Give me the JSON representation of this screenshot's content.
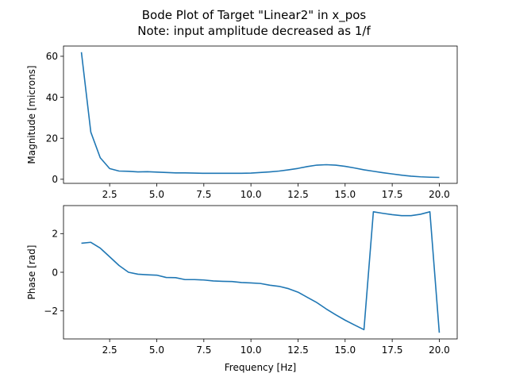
{
  "chart_data": {
    "title": "Bode Plot of Target \"Linear2\" in x_pos",
    "subtitle": "Note: input amplitude decreased as 1/f",
    "colors": {
      "series": "#1f77b4"
    },
    "panels": [
      {
        "id": "magnitude",
        "type": "line",
        "xlabel": "",
        "ylabel": "Magnitude [microns]",
        "xlim": [
          0.05,
          20.95
        ],
        "ylim": [
          -2,
          65
        ],
        "xticks": [
          2.5,
          5.0,
          7.5,
          10.0,
          12.5,
          15.0,
          17.5,
          20.0
        ],
        "xtick_labels": [
          "2.5",
          "5.0",
          "7.5",
          "10.0",
          "12.5",
          "15.0",
          "17.5",
          "20.0"
        ],
        "yticks": [
          0,
          20,
          40,
          60
        ],
        "ytick_labels": [
          "0",
          "20",
          "40",
          "60"
        ],
        "grid": false,
        "x": [
          1.0,
          1.5,
          2.0,
          2.5,
          3.0,
          3.5,
          4.0,
          4.5,
          5.0,
          5.5,
          6.0,
          6.5,
          7.0,
          7.5,
          8.0,
          8.5,
          9.0,
          9.5,
          10.0,
          10.5,
          11.0,
          11.5,
          12.0,
          12.5,
          13.0,
          13.5,
          14.0,
          14.5,
          15.0,
          15.5,
          16.0,
          16.5,
          17.0,
          17.5,
          18.0,
          18.5,
          19.0,
          19.5,
          20.0
        ],
        "values": [
          62.0,
          23.0,
          10.5,
          5.2,
          4.0,
          3.9,
          3.6,
          3.7,
          3.5,
          3.3,
          3.1,
          3.1,
          3.0,
          2.9,
          2.9,
          2.9,
          2.9,
          2.9,
          3.0,
          3.3,
          3.6,
          4.0,
          4.6,
          5.3,
          6.2,
          6.9,
          7.1,
          6.9,
          6.3,
          5.5,
          4.6,
          3.9,
          3.2,
          2.6,
          2.0,
          1.5,
          1.2,
          1.0,
          0.9
        ]
      },
      {
        "id": "phase",
        "type": "line",
        "xlabel": "Frequency [Hz]",
        "ylabel": "Phase [rad]",
        "xlim": [
          0.05,
          20.95
        ],
        "ylim": [
          -3.45,
          3.45
        ],
        "xticks": [
          2.5,
          5.0,
          7.5,
          10.0,
          12.5,
          15.0,
          17.5,
          20.0
        ],
        "xtick_labels": [
          "2.5",
          "5.0",
          "7.5",
          "10.0",
          "12.5",
          "15.0",
          "17.5",
          "20.0"
        ],
        "yticks": [
          -2,
          0,
          2
        ],
        "ytick_labels": [
          "−2",
          "0",
          "2"
        ],
        "grid": false,
        "x": [
          1.0,
          1.5,
          2.0,
          2.5,
          3.0,
          3.5,
          4.0,
          4.5,
          5.0,
          5.5,
          6.0,
          6.5,
          7.0,
          7.5,
          8.0,
          8.5,
          9.0,
          9.5,
          10.0,
          10.5,
          11.0,
          11.5,
          12.0,
          12.5,
          13.0,
          13.5,
          14.0,
          14.5,
          15.0,
          15.5,
          16.0,
          16.5,
          17.0,
          17.5,
          18.0,
          18.5,
          19.0,
          19.5,
          20.0
        ],
        "values": [
          1.5,
          1.55,
          1.25,
          0.8,
          0.35,
          0.0,
          -0.1,
          -0.13,
          -0.15,
          -0.27,
          -0.28,
          -0.38,
          -0.38,
          -0.4,
          -0.45,
          -0.47,
          -0.48,
          -0.53,
          -0.55,
          -0.58,
          -0.67,
          -0.73,
          -0.85,
          -1.03,
          -1.3,
          -1.57,
          -1.9,
          -2.2,
          -2.48,
          -2.73,
          -2.97,
          3.13,
          3.05,
          2.98,
          2.93,
          2.93,
          3.0,
          3.13,
          -3.13
        ]
      }
    ]
  }
}
